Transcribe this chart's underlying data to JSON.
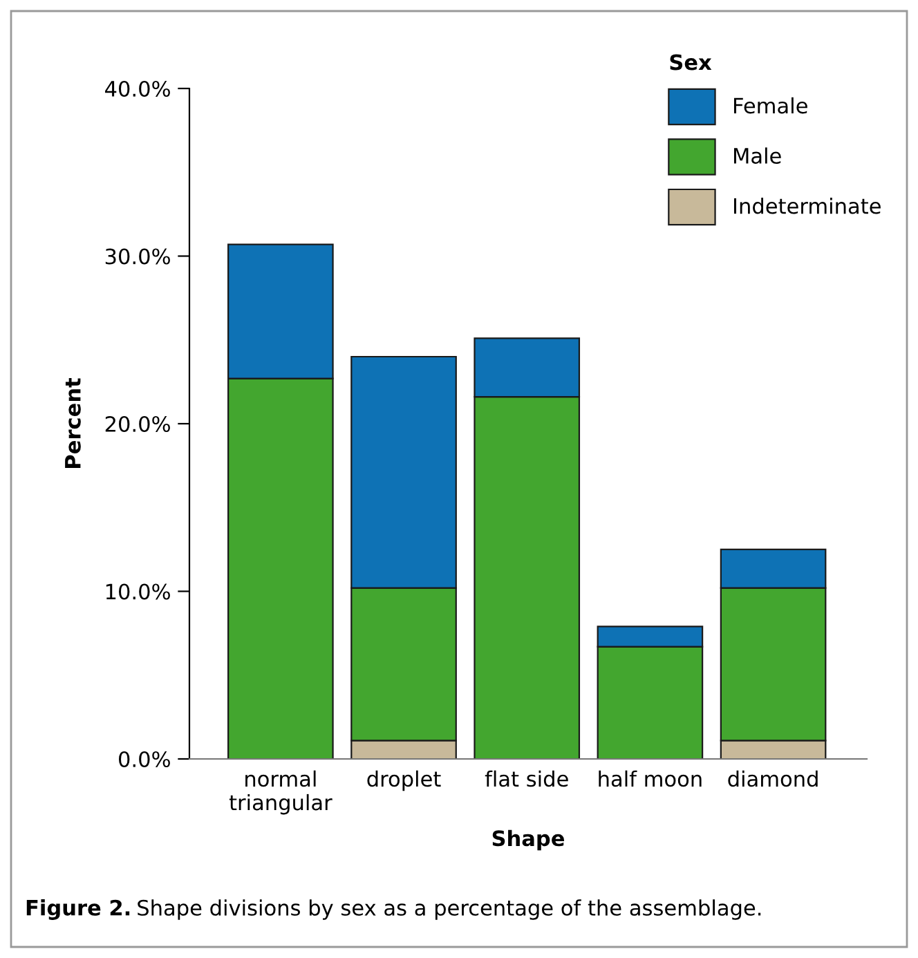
{
  "chart_data": {
    "type": "bar",
    "stacked": true,
    "xlabel": "Shape",
    "ylabel": "Percent",
    "legend_title": "Sex",
    "legend": "top right",
    "categories": [
      "normal\ntriangular",
      "droplet",
      "flat side",
      "half moon",
      "diamond"
    ],
    "series": [
      {
        "name": "Indeterminate",
        "color": "#c8b99a",
        "values": [
          0,
          1.1,
          0,
          0,
          1.1
        ]
      },
      {
        "name": "Male",
        "color": "#43a62f",
        "values": [
          22.7,
          9.1,
          21.6,
          6.7,
          9.1
        ]
      },
      {
        "name": "Female",
        "color": "#0e72b5",
        "values": [
          8.0,
          13.8,
          3.5,
          1.2,
          2.3
        ]
      }
    ],
    "ylim": [
      0,
      40
    ],
    "yticks": [
      {
        "value": 0,
        "label": "0.0%"
      },
      {
        "value": 10,
        "label": "10.0%"
      },
      {
        "value": 20,
        "label": "20.0%"
      },
      {
        "value": 30,
        "label": "30.0%"
      },
      {
        "value": 40,
        "label": "40.0%"
      }
    ],
    "grid": false,
    "annotations": [
      "Figure 2.",
      "Shape divisions by sex as a percentage of the assemblage."
    ]
  }
}
